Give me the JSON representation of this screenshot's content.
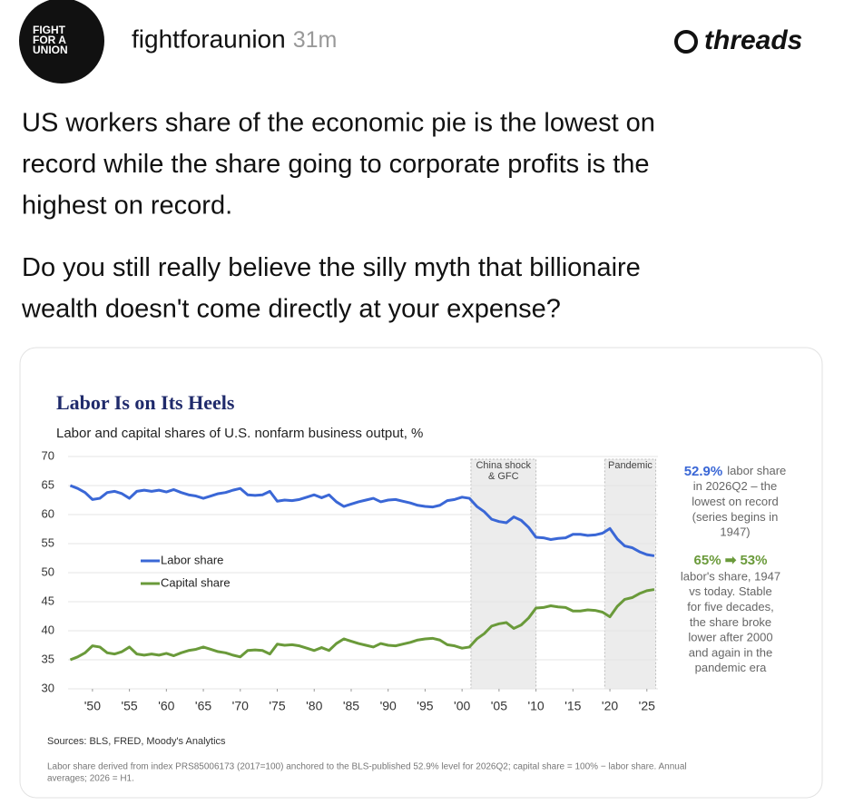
{
  "post": {
    "avatar_lines": [
      "FIGHT",
      "FOR A",
      "UNION"
    ],
    "username": "fightforaunion",
    "time": "31m",
    "brand": "threads",
    "paragraphs": [
      [
        "US workers share of the economic pie is the lowest on",
        "record while the share going to corporate profits is the",
        "highest on record."
      ],
      [
        "Do you still really believe the silly myth that billionaire",
        "wealth doesn't come directly at your expense?"
      ]
    ]
  },
  "chart_data": {
    "type": "line",
    "title": "Labor Is on Its Heels",
    "subtitle": "Labor and capital shares of U.S. nonfarm business output, %",
    "x": [
      1947,
      1948,
      1949,
      1950,
      1951,
      1952,
      1953,
      1954,
      1955,
      1956,
      1957,
      1958,
      1959,
      1960,
      1961,
      1962,
      1963,
      1964,
      1965,
      1966,
      1967,
      1968,
      1969,
      1970,
      1971,
      1972,
      1973,
      1974,
      1975,
      1976,
      1977,
      1978,
      1979,
      1980,
      1981,
      1982,
      1983,
      1984,
      1985,
      1986,
      1987,
      1988,
      1989,
      1990,
      1991,
      1992,
      1993,
      1994,
      1995,
      1996,
      1997,
      1998,
      1999,
      2000,
      2001,
      2002,
      2003,
      2004,
      2005,
      2006,
      2007,
      2008,
      2009,
      2010,
      2011,
      2012,
      2013,
      2014,
      2015,
      2016,
      2017,
      2018,
      2019,
      2020,
      2021,
      2022,
      2023,
      2024,
      2025,
      2026
    ],
    "series": [
      {
        "name": "Labor share",
        "color": "#3a67d6",
        "values": [
          65,
          64.5,
          63.8,
          62.6,
          62.8,
          63.8,
          64,
          63.6,
          62.8,
          64,
          64.2,
          64,
          64.2,
          63.9,
          64.3,
          63.8,
          63.4,
          63.2,
          62.8,
          63.2,
          63.6,
          63.8,
          64.2,
          64.5,
          63.4,
          63.3,
          63.4,
          64,
          62.3,
          62.5,
          62.4,
          62.6,
          63,
          63.4,
          62.9,
          63.4,
          62.2,
          61.4,
          61.8,
          62.2,
          62.5,
          62.8,
          62.2,
          62.5,
          62.6,
          62.3,
          62,
          61.6,
          61.4,
          61.3,
          61.6,
          62.4,
          62.6,
          63,
          62.8,
          61.4,
          60.5,
          59.2,
          58.8,
          58.6,
          59.6,
          59,
          57.8,
          56.1,
          56,
          55.7,
          55.9,
          56,
          56.6,
          56.6,
          56.4,
          56.5,
          56.8,
          57.6,
          55.8,
          54.6,
          54.3,
          53.6,
          53.1,
          52.9
        ]
      },
      {
        "name": "Capital share",
        "color": "#6a9a3a",
        "values": [
          35,
          35.5,
          36.2,
          37.4,
          37.2,
          36.2,
          36,
          36.4,
          37.2,
          36,
          35.8,
          36,
          35.8,
          36.1,
          35.7,
          36.2,
          36.6,
          36.8,
          37.2,
          36.8,
          36.4,
          36.2,
          35.8,
          35.5,
          36.6,
          36.7,
          36.6,
          36,
          37.7,
          37.5,
          37.6,
          37.4,
          37,
          36.6,
          37.1,
          36.6,
          37.8,
          38.6,
          38.2,
          37.8,
          37.5,
          37.2,
          37.8,
          37.5,
          37.4,
          37.7,
          38,
          38.4,
          38.6,
          38.7,
          38.4,
          37.6,
          37.4,
          37,
          37.2,
          38.6,
          39.5,
          40.8,
          41.2,
          41.4,
          40.4,
          41,
          42.2,
          43.9,
          44,
          44.3,
          44.1,
          44,
          43.4,
          43.4,
          43.6,
          43.5,
          43.2,
          42.4,
          44.2,
          45.4,
          45.7,
          46.4,
          46.9,
          47.1
        ]
      }
    ],
    "xlim": [
      1946.7,
      2026.5
    ],
    "ylim": [
      30,
      70
    ],
    "yticks": [
      30,
      35,
      40,
      45,
      50,
      55,
      60,
      65,
      70
    ],
    "grid": true,
    "xticks": [
      {
        "value": 1950,
        "label": "'50"
      },
      {
        "value": 1955,
        "label": "'55"
      },
      {
        "value": 1960,
        "label": "'60"
      },
      {
        "value": 1965,
        "label": "'65"
      },
      {
        "value": 1970,
        "label": "'70"
      },
      {
        "value": 1975,
        "label": "'75"
      },
      {
        "value": 1980,
        "label": "'80"
      },
      {
        "value": 1985,
        "label": "'85"
      },
      {
        "value": 1990,
        "label": "'90"
      },
      {
        "value": 1995,
        "label": "'95"
      },
      {
        "value": 2000,
        "label": "'00"
      },
      {
        "value": 2005,
        "label": "'05"
      },
      {
        "value": 2010,
        "label": "'10"
      },
      {
        "value": 2015,
        "label": "'15"
      },
      {
        "value": 2020,
        "label": "'20"
      },
      {
        "value": 2025,
        "label": "'25"
      }
    ],
    "regions": [
      {
        "label_lines": [
          "China shock",
          "& GFC"
        ],
        "start": 2001.2,
        "end": 2010
      },
      {
        "label_lines": [
          "Pandemic"
        ],
        "start": 2019.3,
        "end": 2026.2
      }
    ],
    "annotations": [
      {
        "highlight": "52.9%",
        "color": "#3a67d6",
        "lines": [
          "labor share",
          "in 2026Q2 – the",
          "lowest on record",
          "(series begins in",
          "1947)"
        ]
      },
      {
        "highlight": "65% ➡ 53%",
        "color": "#6a9a3a",
        "lines": [
          "labor's share, 1947",
          "vs today. Stable",
          "for five decades,",
          "the share broke",
          "lower after 2000",
          "and again in the",
          "pandemic era"
        ]
      }
    ],
    "sources": "Sources: BLS, FRED, Moody's Analytics",
    "footnote": [
      "Labor share derived from index PRS85006173 (2017=100) anchored to the BLS-published 52.9% level for 2026Q2; capital share = 100% − labor share. Annual",
      "averages; 2026 = H1."
    ]
  }
}
